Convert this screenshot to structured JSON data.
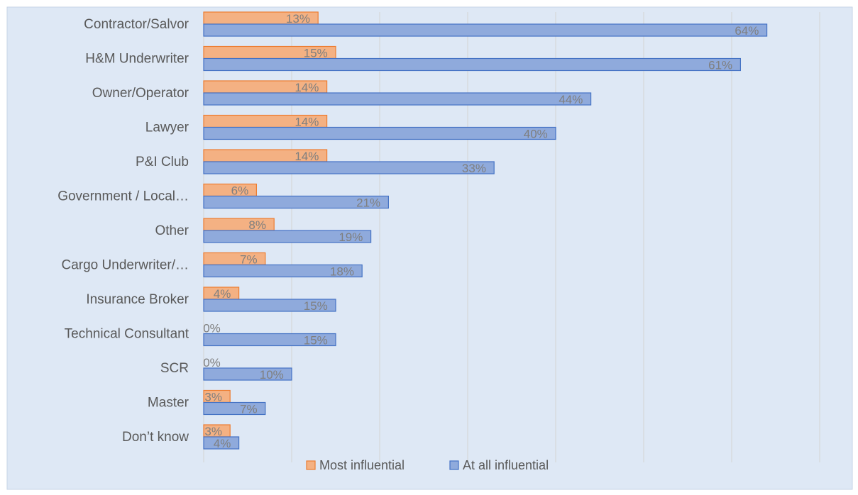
{
  "chart_data": {
    "type": "bar",
    "orientation": "horizontal",
    "categories": [
      "Contractor/Salvor",
      "H&M Underwriter",
      "Owner/Operator",
      "Lawyer",
      "P&I Club",
      "Government / Local…",
      "Other",
      "Cargo Underwriter/…",
      "Insurance Broker",
      "Technical Consultant",
      "SCR",
      "Master",
      "Don’t know"
    ],
    "series": [
      {
        "name": "Most influential",
        "values": [
          13,
          15,
          14,
          14,
          14,
          6,
          8,
          7,
          4,
          0,
          0,
          3,
          3
        ],
        "labels": [
          "13%",
          "15%",
          "14%",
          "14%",
          "14%",
          "6%",
          "8%",
          "7%",
          "4%",
          "0%",
          "0%",
          "3%",
          "3%"
        ],
        "fill": "#f4b183",
        "stroke": "#ed7d31"
      },
      {
        "name": "At all influential",
        "values": [
          64,
          61,
          44,
          40,
          33,
          21,
          19,
          18,
          15,
          15,
          10,
          7,
          4
        ],
        "labels": [
          "64%",
          "61%",
          "44%",
          "40%",
          "33%",
          "21%",
          "19%",
          "18%",
          "15%",
          "15%",
          "10%",
          "7%",
          "4%"
        ],
        "fill": "#8faadc",
        "stroke": "#4472c4"
      }
    ],
    "xlim": [
      0,
      70
    ],
    "gridlines_x": [
      0,
      10,
      20,
      30,
      40,
      50,
      60,
      70
    ],
    "grid": true,
    "legend_position": "bottom",
    "background": "#dee8f5",
    "border_color": "#c6d3e6",
    "grid_color": "#d4d4d4"
  }
}
